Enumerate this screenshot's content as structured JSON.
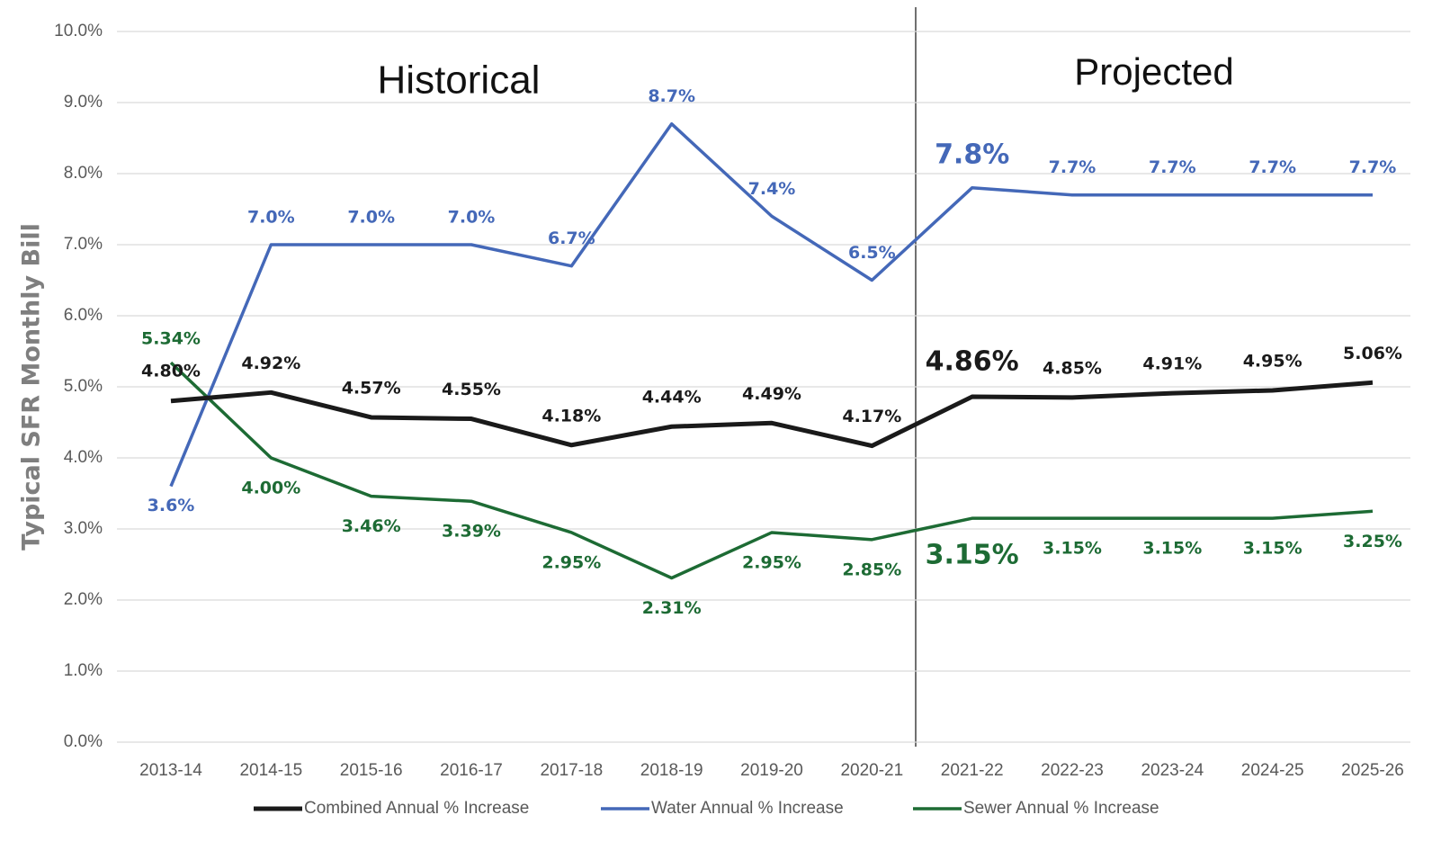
{
  "chart_data": {
    "type": "line",
    "ylabel": "Typical SFR Monthly Bill",
    "annotations": [
      "Historical",
      "Projected"
    ],
    "categories": [
      "2013-14",
      "2014-15",
      "2015-16",
      "2016-17",
      "2017-18",
      "2018-19",
      "2019-20",
      "2020-21",
      "2021-22",
      "2022-23",
      "2023-24",
      "2024-25",
      "2025-26"
    ],
    "series": [
      {
        "name": "Combined Annual % Increase",
        "color": "#1a1a1a",
        "values": [
          4.8,
          4.92,
          4.57,
          4.55,
          4.18,
          4.44,
          4.49,
          4.17,
          4.86,
          4.85,
          4.91,
          4.95,
          5.06
        ],
        "value_labels": [
          "4.80%",
          "4.92%",
          "4.57%",
          "4.55%",
          "4.18%",
          "4.44%",
          "4.49%",
          "4.17%",
          "4.86%",
          "4.85%",
          "4.91%",
          "4.95%",
          "5.06%"
        ]
      },
      {
        "name": "Water Annual % Increase",
        "color": "#4468b8",
        "values": [
          3.6,
          7.0,
          7.0,
          7.0,
          6.7,
          8.7,
          7.4,
          6.5,
          7.8,
          7.7,
          7.7,
          7.7,
          7.7
        ],
        "value_labels": [
          "3.6%",
          "7.0%",
          "7.0%",
          "7.0%",
          "6.7%",
          "8.7%",
          "7.4%",
          "6.5%",
          "7.8%",
          "7.7%",
          "7.7%",
          "7.7%",
          "7.7%"
        ]
      },
      {
        "name": "Sewer Annual % Increase",
        "color": "#1d6b34",
        "values": [
          5.34,
          4.0,
          3.46,
          3.39,
          2.95,
          2.31,
          2.95,
          2.85,
          3.15,
          3.15,
          3.15,
          3.15,
          3.25
        ],
        "value_labels": [
          "5.34%",
          "4.00%",
          "3.46%",
          "3.39%",
          "2.95%",
          "2.31%",
          "2.95%",
          "2.85%",
          "3.15%",
          "3.15%",
          "3.15%",
          "3.15%",
          "3.25%"
        ]
      }
    ],
    "ylim": [
      0,
      10
    ],
    "yticks": [
      {
        "value": 0,
        "label": "0.0%"
      },
      {
        "value": 1,
        "label": "1.0%"
      },
      {
        "value": 2,
        "label": "2.0%"
      },
      {
        "value": 3,
        "label": "3.0%"
      },
      {
        "value": 4,
        "label": "4.0%"
      },
      {
        "value": 5,
        "label": "5.0%"
      },
      {
        "value": 6,
        "label": "6.0%"
      },
      {
        "value": 7,
        "label": "7.0%"
      },
      {
        "value": 8,
        "label": "8.0%"
      },
      {
        "value": 9,
        "label": "9.0%"
      },
      {
        "value": 10,
        "label": "10.0%"
      }
    ],
    "grid": true,
    "legend": "bottom"
  }
}
